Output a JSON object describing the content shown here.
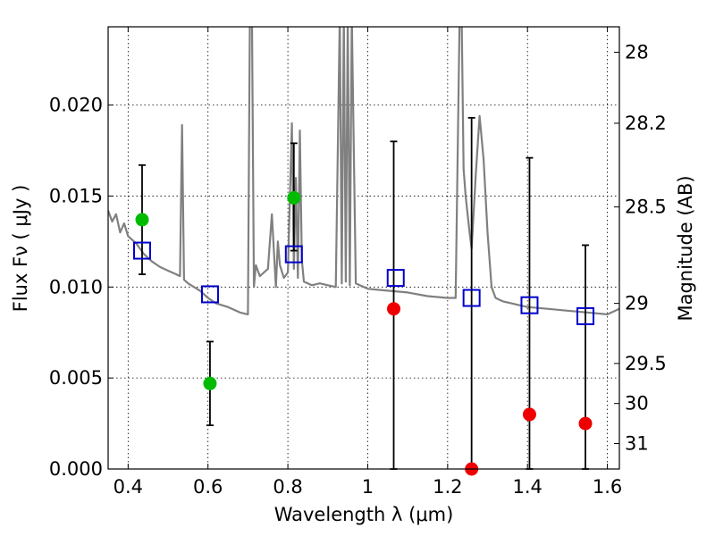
{
  "chart_data": {
    "type": "scatter",
    "title": "",
    "xlabel": "Wavelength  λ (μm)",
    "ylabel": "Flux  Fν  ( μJy )",
    "ylabel_right": "Magnitude (AB)",
    "xlim": [
      0.35,
      1.63
    ],
    "ylim": [
      0,
      0.0243
    ],
    "xticks": [
      0.4,
      0.6,
      0.8,
      1.0,
      1.2,
      1.4,
      1.6
    ],
    "xtick_labels": [
      "0.4",
      "0.6",
      "0.8",
      "1",
      "1.2",
      "1.4",
      "1.6"
    ],
    "yticks": [
      0,
      0.005,
      0.01,
      0.015,
      0.02
    ],
    "ytick_labels": [
      "0.000",
      "0.005",
      "0.010",
      "0.015",
      "0.020"
    ],
    "right_ticks": [
      {
        "label": "28",
        "flux": 0.0229
      },
      {
        "label": "28.2",
        "flux": 0.019
      },
      {
        "label": "28.5",
        "flux": 0.0144
      },
      {
        "label": "29",
        "flux": 0.0091
      },
      {
        "label": "29.5",
        "flux": 0.0058
      },
      {
        "label": "30",
        "flux": 0.0036
      },
      {
        "label": "31",
        "flux": 0.0014
      }
    ],
    "grid": true,
    "colors": {
      "model": "#808080",
      "detected": "#00bb00",
      "upper_limit": "#ee0000",
      "model_band": "#0000cc",
      "error": "#000000"
    },
    "model_spectrum": {
      "name": "",
      "x": [
        0.35,
        0.36,
        0.37,
        0.38,
        0.39,
        0.4,
        0.42,
        0.44,
        0.46,
        0.48,
        0.5,
        0.52,
        0.53,
        0.535,
        0.54,
        0.55,
        0.58,
        0.6,
        0.62,
        0.65,
        0.68,
        0.7,
        0.705,
        0.71,
        0.715,
        0.72,
        0.73,
        0.75,
        0.76,
        0.77,
        0.775,
        0.78,
        0.79,
        0.8,
        0.81,
        0.815,
        0.82,
        0.825,
        0.83,
        0.835,
        0.84,
        0.86,
        0.88,
        0.9,
        0.92,
        0.93,
        0.935,
        0.94,
        0.945,
        0.95,
        0.955,
        0.96,
        0.97,
        1.0,
        1.05,
        1.1,
        1.15,
        1.2,
        1.22,
        1.23,
        1.235,
        1.24,
        1.245,
        1.25,
        1.255,
        1.26,
        1.27,
        1.28,
        1.29,
        1.3,
        1.31,
        1.32,
        1.33,
        1.34,
        1.36,
        1.38,
        1.4,
        1.45,
        1.5,
        1.55,
        1.6,
        1.63
      ],
      "y": [
        0.0142,
        0.0136,
        0.014,
        0.013,
        0.0135,
        0.0128,
        0.0124,
        0.0118,
        0.0114,
        0.0111,
        0.0109,
        0.0107,
        0.0106,
        0.0189,
        0.0104,
        0.0102,
        0.0098,
        0.0094,
        0.0091,
        0.0089,
        0.0086,
        0.0085,
        0.025,
        0.025,
        0.01,
        0.0112,
        0.0106,
        0.011,
        0.014,
        0.01,
        0.0125,
        0.0112,
        0.0105,
        0.0108,
        0.019,
        0.011,
        0.016,
        0.0105,
        0.0186,
        0.0115,
        0.0103,
        0.0101,
        0.0102,
        0.0101,
        0.01,
        0.025,
        0.0102,
        0.025,
        0.0103,
        0.025,
        0.0101,
        0.025,
        0.0102,
        0.0099,
        0.0098,
        0.0097,
        0.0095,
        0.0094,
        0.0094,
        0.025,
        0.025,
        0.0165,
        0.015,
        0.014,
        0.013,
        0.0121,
        0.016,
        0.0194,
        0.017,
        0.013,
        0.01,
        0.0094,
        0.0093,
        0.0092,
        0.0091,
        0.009,
        0.0089,
        0.0088,
        0.0087,
        0.0086,
        0.0085,
        0.0088
      ]
    },
    "model_band_fluxes": {
      "name": "",
      "x": [
        0.435,
        0.605,
        0.815,
        1.07,
        1.26,
        1.405,
        1.545
      ],
      "y": [
        0.012,
        0.0096,
        0.0118,
        0.0105,
        0.0094,
        0.009,
        0.0084
      ]
    },
    "observations": [
      {
        "x": 0.435,
        "y": 0.0137,
        "err_low": 0.0107,
        "err_high": 0.0167,
        "type": "detected"
      },
      {
        "x": 0.605,
        "y": 0.0047,
        "err_low": 0.0024,
        "err_high": 0.007,
        "type": "detected"
      },
      {
        "x": 0.815,
        "y": 0.0149,
        "err_low": 0.012,
        "err_high": 0.0179,
        "type": "detected"
      },
      {
        "x": 1.065,
        "y": 0.0088,
        "err_low": 0.0,
        "err_high": 0.018,
        "type": "upper_limit"
      },
      {
        "x": 1.26,
        "y": 0.0,
        "err_low": 0.0,
        "err_high": 0.0193,
        "type": "upper_limit"
      },
      {
        "x": 1.405,
        "y": 0.003,
        "err_low": 0.0,
        "err_high": 0.0171,
        "type": "upper_limit"
      },
      {
        "x": 1.545,
        "y": 0.0025,
        "err_low": 0.0,
        "err_high": 0.0123,
        "type": "upper_limit"
      }
    ]
  }
}
